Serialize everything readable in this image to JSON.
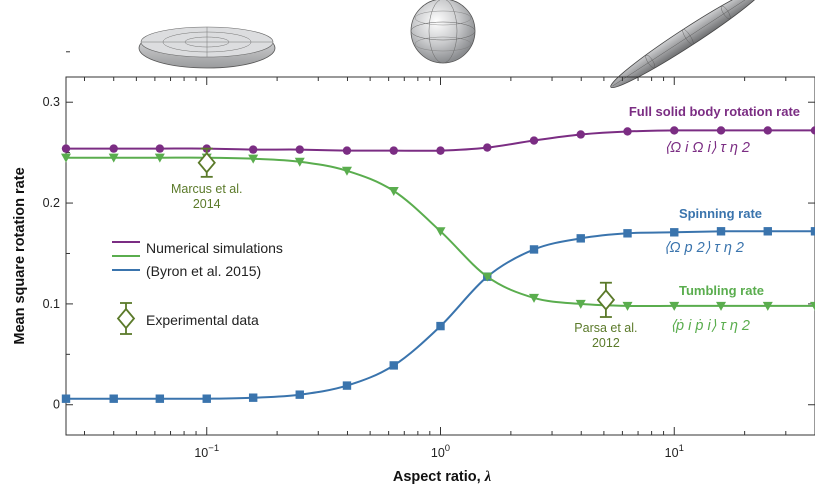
{
  "chart_data": {
    "type": "line",
    "x_scale": "log",
    "xlim": [
      0.025,
      40
    ],
    "ylim": [
      -0.03,
      0.325
    ],
    "xlabel": "Aspect ratio,",
    "xlabel_symbol": "λ",
    "ylabel": "Mean square rotation rate",
    "y_ticks": [
      0,
      0.1,
      0.2,
      0.3
    ],
    "y_tick_labels": [
      "0",
      "0.1",
      "0.2",
      "0.3"
    ],
    "x_ticks": [
      0.1,
      1,
      10
    ],
    "x_tick_labels": [
      {
        "base": "10",
        "exp": "−1"
      },
      {
        "base": "10",
        "exp": "0"
      },
      {
        "base": "10",
        "exp": "1"
      }
    ],
    "series": [
      {
        "key": "full",
        "name": "Full solid body rotation rate",
        "expression": "⟨Ω i Ω i⟩ τ η 2",
        "color": "#7b2d83",
        "marker": "circle",
        "x": [
          0.025,
          0.04,
          0.063,
          0.1,
          0.158,
          0.25,
          0.398,
          0.631,
          1.0,
          1.585,
          2.512,
          3.981,
          6.31,
          10,
          15.85,
          25.12,
          40
        ],
        "y": [
          0.254,
          0.254,
          0.254,
          0.254,
          0.253,
          0.253,
          0.252,
          0.252,
          0.252,
          0.255,
          0.262,
          0.268,
          0.271,
          0.272,
          0.272,
          0.272,
          0.272
        ]
      },
      {
        "key": "spin",
        "name": "Spinning rate",
        "expression": "⟨Ω p 2⟩ τ η 2",
        "color": "#3a74ad",
        "marker": "square",
        "x": [
          0.025,
          0.04,
          0.063,
          0.1,
          0.158,
          0.25,
          0.398,
          0.631,
          1.0,
          1.585,
          2.512,
          3.981,
          6.31,
          10,
          15.85,
          25.12,
          40
        ],
        "y": [
          0.006,
          0.006,
          0.006,
          0.006,
          0.007,
          0.01,
          0.019,
          0.039,
          0.078,
          0.127,
          0.154,
          0.165,
          0.17,
          0.171,
          0.172,
          0.172,
          0.172
        ]
      },
      {
        "key": "tumble",
        "name": "Tumbling rate",
        "expression": "⟨ṗ i ṗ i⟩ τ η 2",
        "color": "#5aad4e",
        "marker": "triangle-down",
        "x": [
          0.025,
          0.04,
          0.063,
          0.1,
          0.158,
          0.25,
          0.398,
          0.631,
          1.0,
          1.585,
          2.512,
          3.981,
          6.31,
          10,
          15.85,
          25.12,
          40
        ],
        "y": [
          0.245,
          0.245,
          0.245,
          0.245,
          0.244,
          0.241,
          0.232,
          0.212,
          0.172,
          0.127,
          0.106,
          0.1,
          0.098,
          0.098,
          0.098,
          0.098,
          0.098
        ]
      }
    ],
    "experimental": [
      {
        "label_lines": [
          "Marcus et al.",
          "2014"
        ],
        "x": 0.1,
        "y": 0.24,
        "err": 0.014
      },
      {
        "label_lines": [
          "Parsa et al.",
          "2012"
        ],
        "x": 5.1,
        "y": 0.104,
        "err": 0.017
      }
    ],
    "legend": {
      "placement": "center-left",
      "entries": [
        "Numerical simulations",
        "(Byron et al. 2015)",
        "Experimental data"
      ]
    },
    "colors": {
      "experimental": "#5b7a2a",
      "axis": "#333333"
    },
    "shapes": [
      "oblate-spheroid",
      "sphere",
      "prolate-spheroid"
    ]
  }
}
